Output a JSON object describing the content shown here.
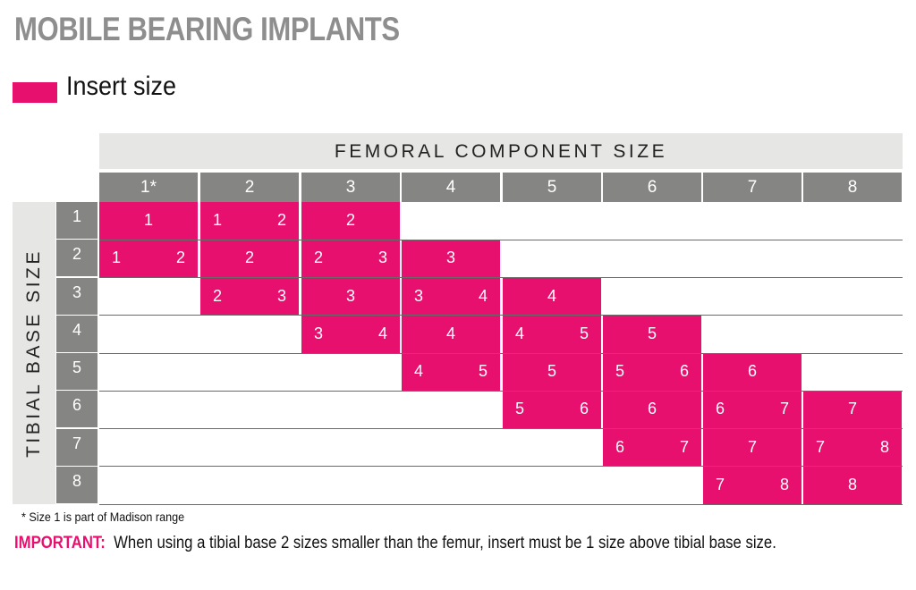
{
  "title": "MOBILE BEARING IMPLANTS",
  "legend": {
    "label": "Insert size",
    "color": "#e8106f"
  },
  "femoral_header": "FEMORAL COMPONENT SIZE",
  "tibial_header": "TIBIAL BASE SIZE",
  "columns": [
    "1*",
    "2",
    "3",
    "4",
    "5",
    "6",
    "7",
    "8"
  ],
  "rows": [
    "1",
    "2",
    "3",
    "4",
    "5",
    "6",
    "7",
    "8"
  ],
  "cells": [
    {
      "row": 1,
      "col": 1,
      "values": [
        "1"
      ]
    },
    {
      "row": 1,
      "col": 2,
      "values": [
        "1",
        "2"
      ]
    },
    {
      "row": 1,
      "col": 3,
      "values": [
        "2"
      ]
    },
    {
      "row": 2,
      "col": 1,
      "values": [
        "1",
        "2"
      ]
    },
    {
      "row": 2,
      "col": 2,
      "values": [
        "2"
      ]
    },
    {
      "row": 2,
      "col": 3,
      "values": [
        "2",
        "3"
      ]
    },
    {
      "row": 2,
      "col": 4,
      "values": [
        "3"
      ]
    },
    {
      "row": 3,
      "col": 2,
      "values": [
        "2",
        "3"
      ]
    },
    {
      "row": 3,
      "col": 3,
      "values": [
        "3"
      ]
    },
    {
      "row": 3,
      "col": 4,
      "values": [
        "3",
        "4"
      ]
    },
    {
      "row": 3,
      "col": 5,
      "values": [
        "4"
      ]
    },
    {
      "row": 4,
      "col": 3,
      "values": [
        "3",
        "4"
      ]
    },
    {
      "row": 4,
      "col": 4,
      "values": [
        "4"
      ]
    },
    {
      "row": 4,
      "col": 5,
      "values": [
        "4",
        "5"
      ]
    },
    {
      "row": 4,
      "col": 6,
      "values": [
        "5"
      ]
    },
    {
      "row": 5,
      "col": 4,
      "values": [
        "4",
        "5"
      ]
    },
    {
      "row": 5,
      "col": 5,
      "values": [
        "5"
      ]
    },
    {
      "row": 5,
      "col": 6,
      "values": [
        "5",
        "6"
      ]
    },
    {
      "row": 5,
      "col": 7,
      "values": [
        "6"
      ]
    },
    {
      "row": 6,
      "col": 5,
      "values": [
        "5",
        "6"
      ]
    },
    {
      "row": 6,
      "col": 6,
      "values": [
        "6"
      ]
    },
    {
      "row": 6,
      "col": 7,
      "values": [
        "6",
        "7"
      ]
    },
    {
      "row": 6,
      "col": 8,
      "values": [
        "7"
      ]
    },
    {
      "row": 7,
      "col": 6,
      "values": [
        "6",
        "7"
      ]
    },
    {
      "row": 7,
      "col": 7,
      "values": [
        "7"
      ]
    },
    {
      "row": 7,
      "col": 8,
      "values": [
        "7",
        "8"
      ]
    },
    {
      "row": 8,
      "col": 7,
      "values": [
        "7",
        "8"
      ]
    },
    {
      "row": 8,
      "col": 8,
      "values": [
        "8"
      ]
    }
  ],
  "footnote": "* Size 1 is part of Madison range",
  "important": {
    "label": "IMPORTANT:",
    "text": "When using a tibial base 2 sizes smaller than the femur, insert must be 1 size above tibial base size."
  },
  "colors": {
    "accent": "#e8106f",
    "header_dark": "#858583",
    "header_light": "#e6e6e5",
    "title": "#8e8e8e"
  }
}
